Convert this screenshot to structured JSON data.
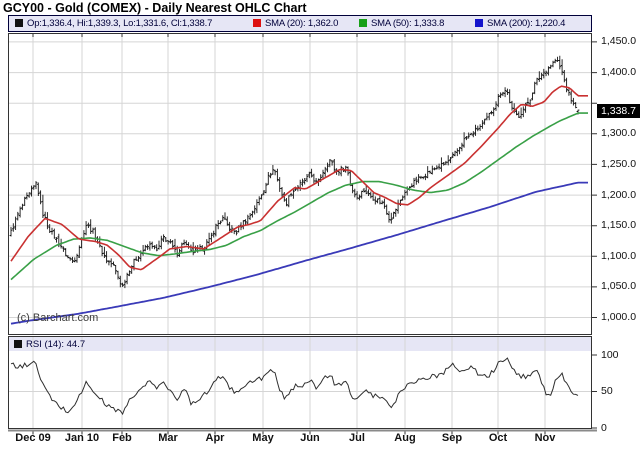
{
  "window": {
    "title": "GCY00 - Gold (COMEX) - Daily Nearest OHLC Chart",
    "watermark": "(c) Barchart.com"
  },
  "legend": {
    "items": [
      {
        "swatch": "#111111",
        "label": "Op:1,336.4, Hi:1,339.3, Lo:1,331.6, Cl:1,338.7"
      },
      {
        "swatch": "#dd1111",
        "label": "SMA (20): 1,362.0"
      },
      {
        "swatch": "#18a018",
        "label": "SMA (50): 1,333.8"
      },
      {
        "swatch": "#1414cc",
        "label": "SMA (200): 1,220.4"
      }
    ]
  },
  "rsi_legend": {
    "swatch": "#111111",
    "label": "RSI (14): 44.7"
  },
  "last_price_label": "1,338.7",
  "chart_data": {
    "type": "ohlc",
    "symbol": "GCY00",
    "title": "GCY00 - Gold (COMEX) - Daily Nearest OHLC Chart",
    "period": "Daily Nearest",
    "x_axis": {
      "months": [
        "Dec 09",
        "Jan 10",
        "Feb",
        "Mar",
        "Apr",
        "May",
        "Jun",
        "Jul",
        "Aug",
        "Sep",
        "Oct",
        "Nov"
      ]
    },
    "y_axis": {
      "range": [
        971.5,
        1464.6
      ],
      "gridline_values": [
        1450,
        1400,
        1350,
        1300,
        1250,
        1200,
        1150,
        1100,
        1050,
        1000
      ],
      "ticks": [
        {
          "v": 1450,
          "label": "1,450.0"
        },
        {
          "v": 1400,
          "label": "1,400.0"
        },
        {
          "v": 1300,
          "label": "1,300.0"
        },
        {
          "v": 1250,
          "label": "1,250.0"
        },
        {
          "v": 1200,
          "label": "1,200.0"
        },
        {
          "v": 1150,
          "label": "1,150.0"
        },
        {
          "v": 1100,
          "label": "1,100.0"
        },
        {
          "v": 1050,
          "label": "1,050.0"
        },
        {
          "v": 1000,
          "label": "1,000.0"
        }
      ]
    },
    "rsi_axis": {
      "range": [
        0,
        100
      ],
      "ticks": [
        {
          "v": 100,
          "label": "100"
        },
        {
          "v": 50,
          "label": "50"
        },
        {
          "v": 0,
          "label": "0"
        }
      ],
      "gridline_values": [
        50
      ]
    },
    "last_bar": {
      "open": 1336.4,
      "high": 1339.3,
      "low": 1331.6,
      "close": 1338.7
    },
    "sma_last": {
      "sma20": 1362.0,
      "sma50": 1333.8,
      "sma200": 1220.4
    },
    "rsi_last": 44.7,
    "bar_count": 250,
    "close_anchors": [
      [
        0.0,
        1140
      ],
      [
        0.012,
        1168
      ],
      [
        0.025,
        1192
      ],
      [
        0.033,
        1202
      ],
      [
        0.045,
        1220
      ],
      [
        0.055,
        1172
      ],
      [
        0.07,
        1140
      ],
      [
        0.085,
        1122
      ],
      [
        0.1,
        1098
      ],
      [
        0.11,
        1092
      ],
      [
        0.118,
        1108
      ],
      [
        0.132,
        1152
      ],
      [
        0.145,
        1140
      ],
      [
        0.158,
        1112
      ],
      [
        0.17,
        1092
      ],
      [
        0.18,
        1086
      ],
      [
        0.188,
        1068
      ],
      [
        0.196,
        1050
      ],
      [
        0.208,
        1078
      ],
      [
        0.222,
        1098
      ],
      [
        0.235,
        1112
      ],
      [
        0.248,
        1120
      ],
      [
        0.258,
        1108
      ],
      [
        0.268,
        1132
      ],
      [
        0.28,
        1122
      ],
      [
        0.292,
        1104
      ],
      [
        0.305,
        1124
      ],
      [
        0.318,
        1106
      ],
      [
        0.33,
        1110
      ],
      [
        0.34,
        1116
      ],
      [
        0.35,
        1126
      ],
      [
        0.362,
        1150
      ],
      [
        0.374,
        1162
      ],
      [
        0.384,
        1148
      ],
      [
        0.396,
        1138
      ],
      [
        0.408,
        1154
      ],
      [
        0.422,
        1168
      ],
      [
        0.434,
        1186
      ],
      [
        0.445,
        1208
      ],
      [
        0.455,
        1232
      ],
      [
        0.464,
        1244
      ],
      [
        0.474,
        1212
      ],
      [
        0.484,
        1184
      ],
      [
        0.494,
        1204
      ],
      [
        0.506,
        1214
      ],
      [
        0.516,
        1222
      ],
      [
        0.528,
        1234
      ],
      [
        0.54,
        1218
      ],
      [
        0.552,
        1242
      ],
      [
        0.563,
        1258
      ],
      [
        0.573,
        1238
      ],
      [
        0.583,
        1242
      ],
      [
        0.592,
        1246
      ],
      [
        0.6,
        1212
      ],
      [
        0.61,
        1196
      ],
      [
        0.622,
        1208
      ],
      [
        0.634,
        1198
      ],
      [
        0.646,
        1192
      ],
      [
        0.658,
        1184
      ],
      [
        0.668,
        1160
      ],
      [
        0.675,
        1170
      ],
      [
        0.681,
        1182
      ],
      [
        0.693,
        1202
      ],
      [
        0.705,
        1216
      ],
      [
        0.718,
        1226
      ],
      [
        0.73,
        1234
      ],
      [
        0.742,
        1240
      ],
      [
        0.753,
        1246
      ],
      [
        0.763,
        1250
      ],
      [
        0.775,
        1258
      ],
      [
        0.787,
        1272
      ],
      [
        0.799,
        1290
      ],
      [
        0.811,
        1298
      ],
      [
        0.822,
        1308
      ],
      [
        0.833,
        1316
      ],
      [
        0.843,
        1330
      ],
      [
        0.853,
        1346
      ],
      [
        0.864,
        1368
      ],
      [
        0.874,
        1372
      ],
      [
        0.884,
        1338
      ],
      [
        0.894,
        1328
      ],
      [
        0.905,
        1342
      ],
      [
        0.915,
        1356
      ],
      [
        0.925,
        1384
      ],
      [
        0.937,
        1398
      ],
      [
        0.95,
        1410
      ],
      [
        0.962,
        1422
      ],
      [
        0.972,
        1400
      ],
      [
        0.982,
        1368
      ],
      [
        0.99,
        1352
      ],
      [
        1.0,
        1338.7
      ]
    ],
    "sma20_anchors": [
      [
        0.0,
        1092
      ],
      [
        0.03,
        1132
      ],
      [
        0.06,
        1162
      ],
      [
        0.09,
        1152
      ],
      [
        0.12,
        1128
      ],
      [
        0.15,
        1124
      ],
      [
        0.17,
        1118
      ],
      [
        0.19,
        1102
      ],
      [
        0.21,
        1082
      ],
      [
        0.23,
        1078
      ],
      [
        0.26,
        1098
      ],
      [
        0.28,
        1112
      ],
      [
        0.31,
        1116
      ],
      [
        0.34,
        1112
      ],
      [
        0.37,
        1130
      ],
      [
        0.4,
        1148
      ],
      [
        0.42,
        1152
      ],
      [
        0.44,
        1158
      ],
      [
        0.47,
        1190
      ],
      [
        0.5,
        1212
      ],
      [
        0.52,
        1210
      ],
      [
        0.55,
        1226
      ],
      [
        0.58,
        1242
      ],
      [
        0.6,
        1240
      ],
      [
        0.62,
        1222
      ],
      [
        0.64,
        1204
      ],
      [
        0.66,
        1196
      ],
      [
        0.68,
        1186
      ],
      [
        0.7,
        1184
      ],
      [
        0.72,
        1196
      ],
      [
        0.74,
        1212
      ],
      [
        0.77,
        1232
      ],
      [
        0.8,
        1252
      ],
      [
        0.83,
        1280
      ],
      [
        0.86,
        1310
      ],
      [
        0.88,
        1332
      ],
      [
        0.9,
        1348
      ],
      [
        0.92,
        1345
      ],
      [
        0.94,
        1352
      ],
      [
        0.955,
        1368
      ],
      [
        0.97,
        1378
      ],
      [
        0.985,
        1375
      ],
      [
        1.0,
        1362
      ]
    ],
    "sma50_anchors": [
      [
        0.0,
        1062
      ],
      [
        0.04,
        1095
      ],
      [
        0.08,
        1118
      ],
      [
        0.11,
        1128
      ],
      [
        0.14,
        1130
      ],
      [
        0.17,
        1126
      ],
      [
        0.2,
        1116
      ],
      [
        0.23,
        1106
      ],
      [
        0.26,
        1101
      ],
      [
        0.29,
        1104
      ],
      [
        0.32,
        1108
      ],
      [
        0.35,
        1111
      ],
      [
        0.38,
        1118
      ],
      [
        0.41,
        1132
      ],
      [
        0.44,
        1142
      ],
      [
        0.47,
        1158
      ],
      [
        0.5,
        1172
      ],
      [
        0.53,
        1188
      ],
      [
        0.56,
        1204
      ],
      [
        0.59,
        1216
      ],
      [
        0.62,
        1222
      ],
      [
        0.65,
        1222
      ],
      [
        0.68,
        1216
      ],
      [
        0.71,
        1208
      ],
      [
        0.74,
        1204
      ],
      [
        0.77,
        1208
      ],
      [
        0.8,
        1220
      ],
      [
        0.83,
        1238
      ],
      [
        0.86,
        1258
      ],
      [
        0.89,
        1278
      ],
      [
        0.92,
        1296
      ],
      [
        0.95,
        1312
      ],
      [
        0.97,
        1322
      ],
      [
        1.0,
        1333.8
      ]
    ],
    "sma200_anchors": [
      [
        0.0,
        990
      ],
      [
        0.033,
        995
      ],
      [
        0.118,
        1006
      ],
      [
        0.188,
        1018
      ],
      [
        0.268,
        1032
      ],
      [
        0.35,
        1050
      ],
      [
        0.434,
        1070
      ],
      [
        0.516,
        1092
      ],
      [
        0.598,
        1113
      ],
      [
        0.681,
        1135
      ],
      [
        0.763,
        1158
      ],
      [
        0.843,
        1180
      ],
      [
        0.925,
        1205
      ],
      [
        1.0,
        1220.4
      ]
    ],
    "rsi_anchors": [
      [
        0.0,
        87
      ],
      [
        0.015,
        83
      ],
      [
        0.03,
        88
      ],
      [
        0.042,
        90
      ],
      [
        0.055,
        62
      ],
      [
        0.07,
        40
      ],
      [
        0.085,
        30
      ],
      [
        0.1,
        22
      ],
      [
        0.112,
        32
      ],
      [
        0.118,
        40
      ],
      [
        0.132,
        62
      ],
      [
        0.145,
        50
      ],
      [
        0.158,
        40
      ],
      [
        0.17,
        30
      ],
      [
        0.18,
        27
      ],
      [
        0.188,
        24
      ],
      [
        0.196,
        21
      ],
      [
        0.208,
        36
      ],
      [
        0.222,
        48
      ],
      [
        0.235,
        58
      ],
      [
        0.248,
        64
      ],
      [
        0.258,
        52
      ],
      [
        0.268,
        66
      ],
      [
        0.28,
        52
      ],
      [
        0.292,
        36
      ],
      [
        0.305,
        56
      ],
      [
        0.318,
        34
      ],
      [
        0.33,
        40
      ],
      [
        0.34,
        46
      ],
      [
        0.35,
        52
      ],
      [
        0.362,
        66
      ],
      [
        0.374,
        72
      ],
      [
        0.384,
        58
      ],
      [
        0.396,
        46
      ],
      [
        0.408,
        58
      ],
      [
        0.422,
        62
      ],
      [
        0.434,
        66
      ],
      [
        0.445,
        70
      ],
      [
        0.455,
        76
      ],
      [
        0.464,
        78
      ],
      [
        0.474,
        52
      ],
      [
        0.484,
        38
      ],
      [
        0.494,
        54
      ],
      [
        0.506,
        58
      ],
      [
        0.516,
        60
      ],
      [
        0.528,
        68
      ],
      [
        0.54,
        52
      ],
      [
        0.552,
        68
      ],
      [
        0.563,
        74
      ],
      [
        0.573,
        56
      ],
      [
        0.583,
        60
      ],
      [
        0.592,
        62
      ],
      [
        0.6,
        44
      ],
      [
        0.61,
        38
      ],
      [
        0.622,
        52
      ],
      [
        0.634,
        46
      ],
      [
        0.646,
        42
      ],
      [
        0.658,
        40
      ],
      [
        0.668,
        28
      ],
      [
        0.675,
        34
      ],
      [
        0.681,
        42
      ],
      [
        0.693,
        56
      ],
      [
        0.705,
        62
      ],
      [
        0.718,
        66
      ],
      [
        0.73,
        68
      ],
      [
        0.742,
        70
      ],
      [
        0.753,
        72
      ],
      [
        0.763,
        74
      ],
      [
        0.775,
        88
      ],
      [
        0.787,
        82
      ],
      [
        0.799,
        78
      ],
      [
        0.811,
        84
      ],
      [
        0.822,
        76
      ],
      [
        0.833,
        70
      ],
      [
        0.843,
        72
      ],
      [
        0.853,
        80
      ],
      [
        0.864,
        92
      ],
      [
        0.874,
        97
      ],
      [
        0.884,
        80
      ],
      [
        0.894,
        72
      ],
      [
        0.905,
        70
      ],
      [
        0.915,
        74
      ],
      [
        0.925,
        80
      ],
      [
        0.937,
        62
      ],
      [
        0.944,
        48
      ],
      [
        0.95,
        44
      ],
      [
        0.962,
        66
      ],
      [
        0.972,
        72
      ],
      [
        0.982,
        56
      ],
      [
        0.99,
        48
      ],
      [
        1.0,
        44.7
      ]
    ],
    "colors": {
      "bars": "#141414",
      "sma20": "#c93131",
      "sma50": "#39a047",
      "sma200": "#3a3ab8",
      "rsi": "#2e2e2e",
      "grid": "#d5d5d5",
      "frame": "#333333",
      "axis_line": "#8a8a8a",
      "rsi_band_bg": "#e6e6f5",
      "legend_bg": "#e6e6f5",
      "legend_border": "#00003a",
      "legend_text": "#00003a",
      "label_box_bg": "#000000",
      "label_box_text": "#ffffff"
    }
  }
}
